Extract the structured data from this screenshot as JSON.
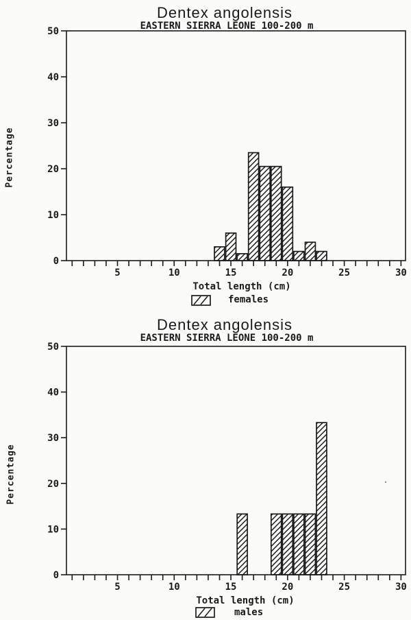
{
  "page": {
    "background": "#fbfbf9",
    "ink": "#1a1a1a"
  },
  "chart_data": [
    {
      "type": "bar",
      "title": "Dentex angolensis",
      "subtitle": "EASTERN SIERRA LEONE 100-200 m",
      "xlabel": "Total length (cm)",
      "ylabel": "Percentage",
      "legend_label": "females",
      "legend_swatch": "diagonal-hatch",
      "legend_position": "below-x-axis",
      "grid": false,
      "bar_fill": "diagonal-hatch",
      "x_units": "cm",
      "x": [
        14,
        15,
        16,
        17,
        18,
        19,
        20,
        21,
        22,
        23
      ],
      "values": [
        3,
        6,
        1.5,
        23.5,
        20.5,
        20.5,
        16,
        2,
        4,
        2
      ],
      "bar_width_cm": 0.9,
      "xlim": [
        0.5,
        30.4
      ],
      "ylim": [
        0,
        50
      ],
      "xticks_labeled": [
        5,
        10,
        15,
        20,
        25,
        30
      ],
      "xtick_minor_step": 1,
      "yticks": [
        0,
        10,
        20,
        30,
        40,
        50
      ]
    },
    {
      "type": "bar",
      "title": "Dentex angolensis",
      "subtitle": "EASTERN SIERRA LEONE 100-200 m",
      "xlabel": "Total length (cm)",
      "ylabel": "Percentage",
      "legend_label": "males",
      "legend_swatch": "diagonal-hatch",
      "legend_position": "below-x-axis",
      "grid": false,
      "bar_fill": "diagonal-hatch",
      "x_units": "cm",
      "x": [
        16,
        19,
        20,
        21,
        22,
        23
      ],
      "values": [
        13.3,
        13.3,
        13.3,
        13.3,
        13.3,
        33.3
      ],
      "bar_width_cm": 0.9,
      "xlim": [
        0.5,
        30.4
      ],
      "ylim": [
        0,
        50
      ],
      "xticks_labeled": [
        5,
        10,
        15,
        20,
        25,
        30
      ],
      "xtick_minor_step": 1,
      "yticks": [
        0,
        10,
        20,
        30,
        40,
        50
      ]
    }
  ]
}
